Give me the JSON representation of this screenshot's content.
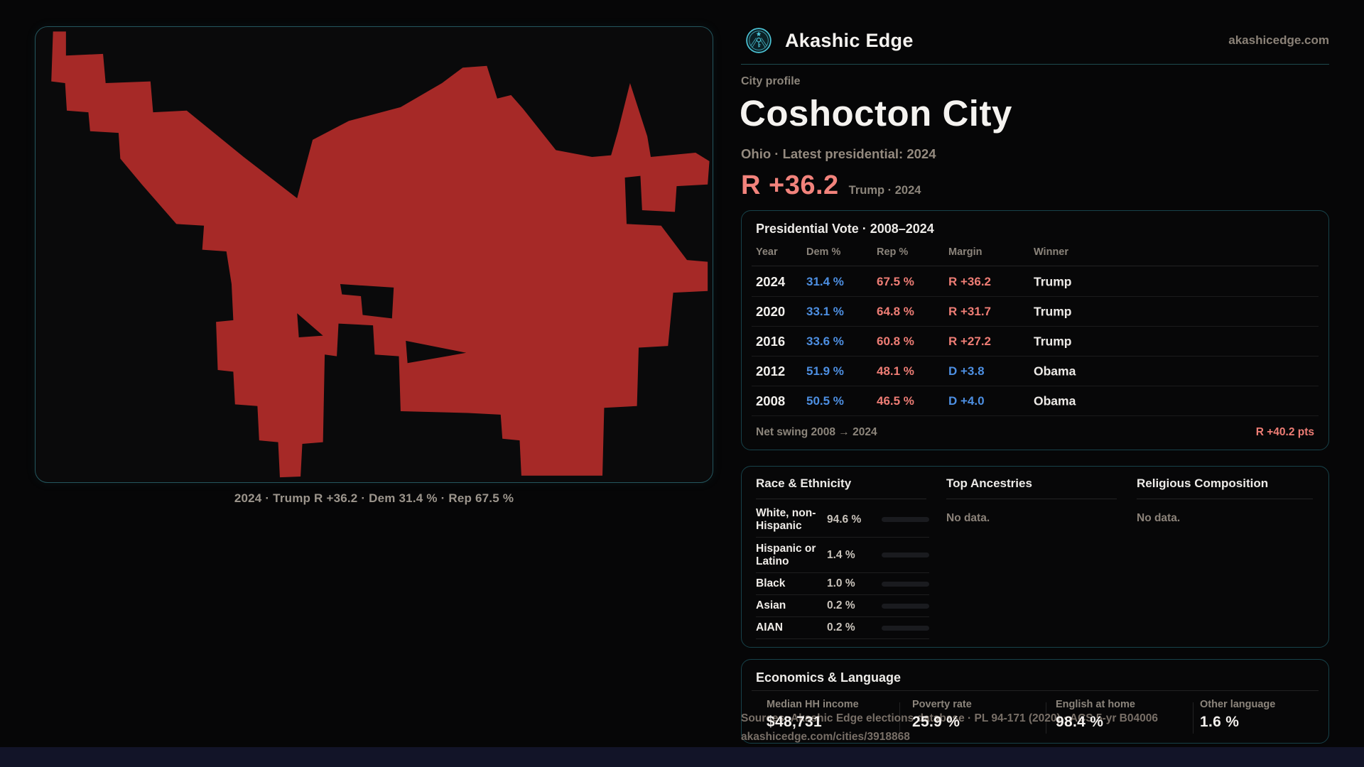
{
  "brand": {
    "name": "Akashic Edge",
    "domain": "akashicedge.com",
    "logo_color": "#4cc4d6"
  },
  "header": {
    "kicker": "City profile",
    "title": "Coshocton City",
    "subtitle": "Ohio · Latest presidential: 2024",
    "headline_margin": "R +36.2",
    "headline_context": "Trump · 2024"
  },
  "map": {
    "caption": "2024 · Trump R +36.2 · Dem 31.4 % · Rep 67.5 %",
    "shape_fill": "#a62927"
  },
  "vote_table": {
    "title": "Presidential Vote · 2008–2024",
    "columns": {
      "year": "Year",
      "dem": "Dem %",
      "rep": "Rep %",
      "margin": "Margin",
      "winner": "Winner"
    },
    "rows": [
      {
        "year": "2024",
        "dem": "31.4 %",
        "rep": "67.5 %",
        "margin": "R +36.2",
        "margin_color": "#ee7d75",
        "winner": "Trump"
      },
      {
        "year": "2020",
        "dem": "33.1 %",
        "rep": "64.8 %",
        "margin": "R +31.7",
        "margin_color": "#ee7d75",
        "winner": "Trump"
      },
      {
        "year": "2016",
        "dem": "33.6 %",
        "rep": "60.8 %",
        "margin": "R +27.2",
        "margin_color": "#ee7d75",
        "winner": "Trump"
      },
      {
        "year": "2012",
        "dem": "51.9 %",
        "rep": "48.1 %",
        "margin": "D +3.8",
        "margin_color": "#4d8fe2",
        "winner": "Obama"
      },
      {
        "year": "2008",
        "dem": "50.5 %",
        "rep": "46.5 %",
        "margin": "D +4.0",
        "margin_color": "#4d8fe2",
        "winner": "Obama"
      }
    ],
    "net_swing_label": "Net swing 2008 → 2024",
    "net_swing_value": "R +40.2 pts"
  },
  "demographics": {
    "race_title": "Race & Ethnicity",
    "races": [
      {
        "label": "White, non-Hispanic",
        "value": "94.6 %",
        "pct": 94.6,
        "bar_color": "#8494ab"
      },
      {
        "label": "Hispanic or Latino",
        "value": "1.4 %",
        "pct": 1.4,
        "bar_color": "#c98a3a"
      },
      {
        "label": "Black",
        "value": "1.0 %",
        "pct": 1.0,
        "bar_color": "#26272c"
      },
      {
        "label": "Asian",
        "value": "0.2 %",
        "pct": 0.2,
        "bar_color": "#26272c"
      },
      {
        "label": "AIAN",
        "value": "0.2 %",
        "pct": 0.2,
        "bar_color": "#26272c"
      }
    ],
    "ancestries_title": "Top Ancestries",
    "ancestries_empty": "No data.",
    "religion_title": "Religious Composition",
    "religion_empty": "No data."
  },
  "economics": {
    "title": "Economics & Language",
    "stats": [
      {
        "label": "Median HH income",
        "value": "$48,731"
      },
      {
        "label": "Poverty rate",
        "value": "25.9 %"
      },
      {
        "label": "English at home",
        "value": "98.4 %"
      },
      {
        "label": "Other language",
        "value": "1.6 %"
      }
    ]
  },
  "footer": {
    "sources": "Sources: Akashic Edge elections database · PL 94-171 (2020) · ACS 5-yr B04006",
    "permalink": "akashicedge.com/cities/3918868"
  },
  "colors": {
    "dem_blue": "#4d8fe2",
    "rep_red": "#ee7d75",
    "accent_teal": "#4cc4d6",
    "card_border": "#17424a",
    "map_red": "#a62927"
  }
}
